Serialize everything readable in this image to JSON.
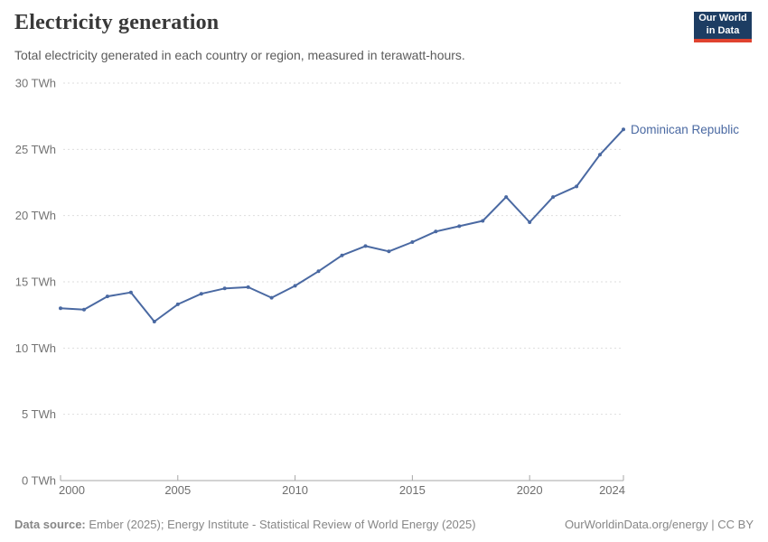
{
  "header": {
    "title": "Electricity generation",
    "subtitle": "Total electricity generated in each country or region, measured in terawatt-hours.",
    "logo": {
      "line1": "Our World",
      "line2": "in Data",
      "bg_color": "#1d3d63",
      "stripe_color": "#e0432f"
    }
  },
  "chart_data": {
    "type": "line",
    "title": "Electricity generation",
    "xlabel": "",
    "ylabel": "TWh",
    "xlim": [
      2000,
      2024
    ],
    "ylim": [
      0,
      30
    ],
    "xticks": [
      2000,
      2005,
      2010,
      2015,
      2020,
      2024
    ],
    "yticks": [
      0,
      5,
      10,
      15,
      20,
      25,
      30
    ],
    "ytick_format": "{v} TWh",
    "grid": "horizontal-dashed",
    "legend_position": "end-of-line-label",
    "x": [
      2000,
      2001,
      2002,
      2003,
      2004,
      2005,
      2006,
      2007,
      2008,
      2009,
      2010,
      2011,
      2012,
      2013,
      2014,
      2015,
      2016,
      2017,
      2018,
      2019,
      2020,
      2021,
      2022,
      2023,
      2024
    ],
    "series": [
      {
        "name": "Dominican Republic",
        "color": "#4a69a2",
        "values": [
          13.0,
          12.9,
          13.9,
          14.2,
          12.0,
          13.3,
          14.1,
          14.5,
          14.6,
          13.8,
          14.7,
          15.8,
          17.0,
          17.7,
          17.3,
          18.0,
          18.8,
          19.2,
          19.6,
          21.4,
          19.5,
          21.4,
          22.2,
          24.6,
          26.5
        ]
      }
    ],
    "colors": {
      "gridline": "#dedede",
      "axis": "#a7a7a7",
      "y_tick_label": "#737373",
      "x_tick_label": "#6e6e6e"
    }
  },
  "footer": {
    "datasource_label": "Data source:",
    "datasource_text": " Ember (2025); Energy Institute - Statistical Review of World Energy (2025)",
    "right_text": "OurWorldinData.org/energy | CC BY"
  }
}
